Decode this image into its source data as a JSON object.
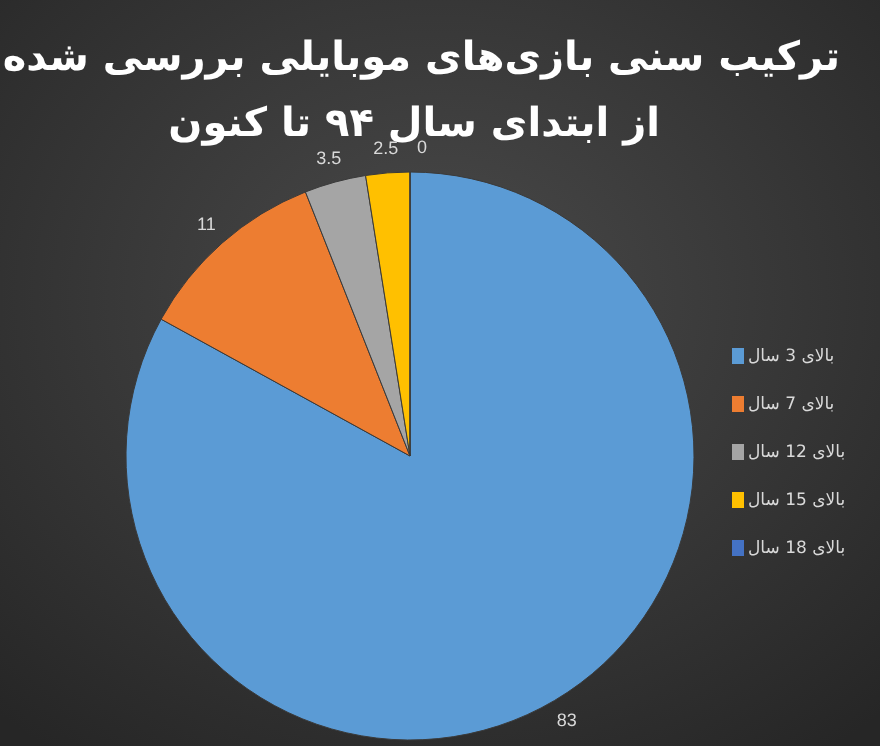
{
  "chart_data": {
    "type": "pie",
    "title": "ترکیب سنی بازی‌های موبایلی بررسی شده",
    "subtitle": "از ابتدای سال ۹۴ تا کنون",
    "categories": [
      "بالای 3 سال",
      "بالای 7 سال",
      "بالای 12 سال",
      "بالای 15 سال",
      "بالای 18 سال"
    ],
    "values": [
      83,
      11,
      3.5,
      2.5,
      0
    ],
    "colors": [
      "#5b9bd5",
      "#ed7d31",
      "#a5a5a5",
      "#ffc000",
      "#4472c4"
    ],
    "value_labels": [
      "83",
      "11",
      "3.5",
      "2.5",
      "0"
    ],
    "legend": "right"
  }
}
